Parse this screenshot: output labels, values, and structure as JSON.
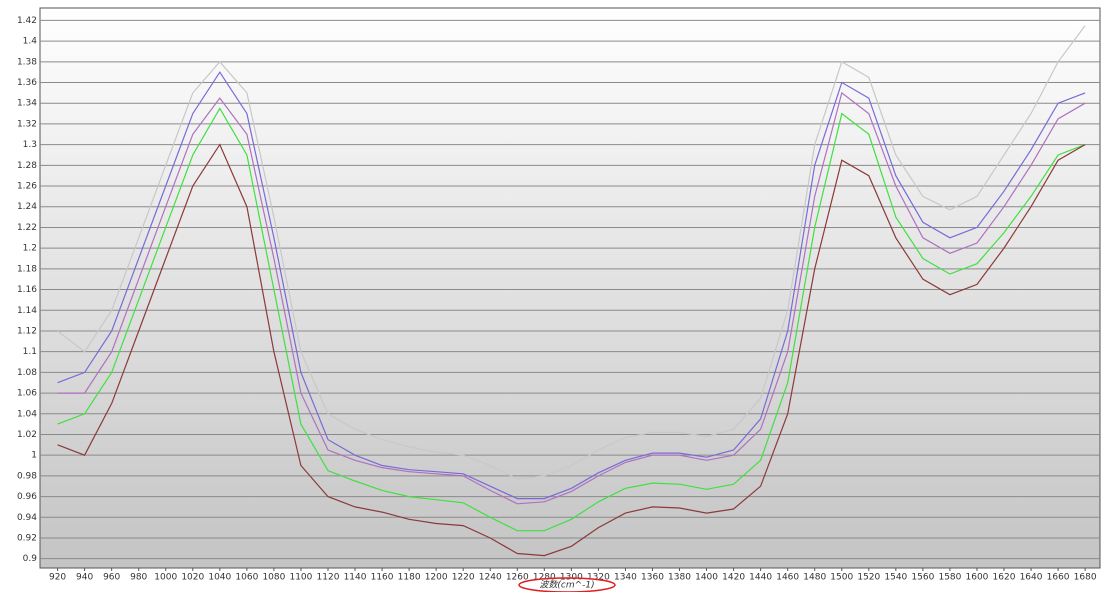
{
  "chart_data": {
    "type": "line",
    "x_label": "波数(cm^-1)",
    "x": [
      920,
      940,
      960,
      980,
      1000,
      1020,
      1040,
      1060,
      1080,
      1100,
      1120,
      1140,
      1160,
      1180,
      1200,
      1220,
      1240,
      1260,
      1280,
      1300,
      1320,
      1340,
      1360,
      1380,
      1400,
      1420,
      1440,
      1460,
      1480,
      1500,
      1520,
      1540,
      1560,
      1580,
      1600,
      1620,
      1640,
      1660,
      1680
    ],
    "xlim": [
      907,
      1691
    ],
    "xticks": [
      920,
      940,
      960,
      980,
      1000,
      1020,
      1040,
      1060,
      1080,
      1100,
      1120,
      1140,
      1160,
      1180,
      1200,
      1220,
      1240,
      1260,
      1280,
      1300,
      1320,
      1340,
      1360,
      1380,
      1400,
      1420,
      1440,
      1460,
      1480,
      1500,
      1520,
      1540,
      1560,
      1580,
      1600,
      1620,
      1640,
      1660,
      1680
    ],
    "ylim": [
      0.891,
      1.432
    ],
    "yticks": [
      0.9,
      0.92,
      0.94,
      0.96,
      0.98,
      1,
      1.02,
      1.04,
      1.06,
      1.08,
      1.1,
      1.12,
      1.14,
      1.16,
      1.18,
      1.2,
      1.22,
      1.24,
      1.26,
      1.28,
      1.3,
      1.32,
      1.34,
      1.36,
      1.38,
      1.4,
      1.42
    ],
    "grid": true,
    "series": [
      {
        "color": "#c8c8c8",
        "values": [
          1.12,
          1.1,
          1.14,
          1.21,
          1.28,
          1.35,
          1.38,
          1.35,
          1.23,
          1.1,
          1.04,
          1.025,
          1.015,
          1.008,
          1.003,
          1.0,
          0.99,
          0.977,
          0.98,
          0.99,
          1.005,
          1.017,
          1.022,
          1.022,
          1.018,
          1.025,
          1.055,
          1.14,
          1.3,
          1.38,
          1.365,
          1.29,
          1.25,
          1.237,
          1.25,
          1.29,
          1.33,
          1.38,
          1.415
        ]
      },
      {
        "color": "#7a6ad8",
        "values": [
          1.07,
          1.08,
          1.12,
          1.19,
          1.26,
          1.33,
          1.37,
          1.33,
          1.21,
          1.08,
          1.015,
          1.0,
          0.99,
          0.986,
          0.984,
          0.982,
          0.97,
          0.958,
          0.958,
          0.968,
          0.983,
          0.995,
          1.002,
          1.002,
          0.998,
          1.005,
          1.035,
          1.12,
          1.28,
          1.36,
          1.345,
          1.27,
          1.225,
          1.21,
          1.22,
          1.255,
          1.295,
          1.34,
          1.35
        ]
      },
      {
        "color": "#b070c0",
        "values": [
          1.06,
          1.06,
          1.1,
          1.17,
          1.24,
          1.31,
          1.345,
          1.31,
          1.19,
          1.06,
          1.005,
          0.995,
          0.988,
          0.984,
          0.982,
          0.98,
          0.966,
          0.953,
          0.955,
          0.965,
          0.98,
          0.993,
          1.0,
          1.0,
          0.995,
          1.0,
          1.025,
          1.1,
          1.25,
          1.35,
          1.33,
          1.26,
          1.21,
          1.195,
          1.205,
          1.24,
          1.28,
          1.325,
          1.34
        ]
      },
      {
        "color": "#40e040",
        "values": [
          1.03,
          1.04,
          1.08,
          1.15,
          1.22,
          1.29,
          1.335,
          1.29,
          1.16,
          1.03,
          0.985,
          0.975,
          0.966,
          0.96,
          0.957,
          0.954,
          0.94,
          0.927,
          0.927,
          0.938,
          0.955,
          0.968,
          0.973,
          0.972,
          0.967,
          0.972,
          0.995,
          1.07,
          1.22,
          1.33,
          1.31,
          1.23,
          1.19,
          1.175,
          1.185,
          1.215,
          1.25,
          1.29,
          1.3
        ]
      },
      {
        "color": "#8b3a3a",
        "values": [
          1.01,
          1.0,
          1.05,
          1.12,
          1.19,
          1.26,
          1.3,
          1.24,
          1.1,
          0.99,
          0.96,
          0.95,
          0.945,
          0.938,
          0.934,
          0.932,
          0.92,
          0.905,
          0.903,
          0.912,
          0.93,
          0.944,
          0.95,
          0.949,
          0.944,
          0.948,
          0.97,
          1.04,
          1.18,
          1.285,
          1.27,
          1.21,
          1.17,
          1.155,
          1.165,
          1.2,
          1.24,
          1.285,
          1.3
        ]
      }
    ]
  }
}
